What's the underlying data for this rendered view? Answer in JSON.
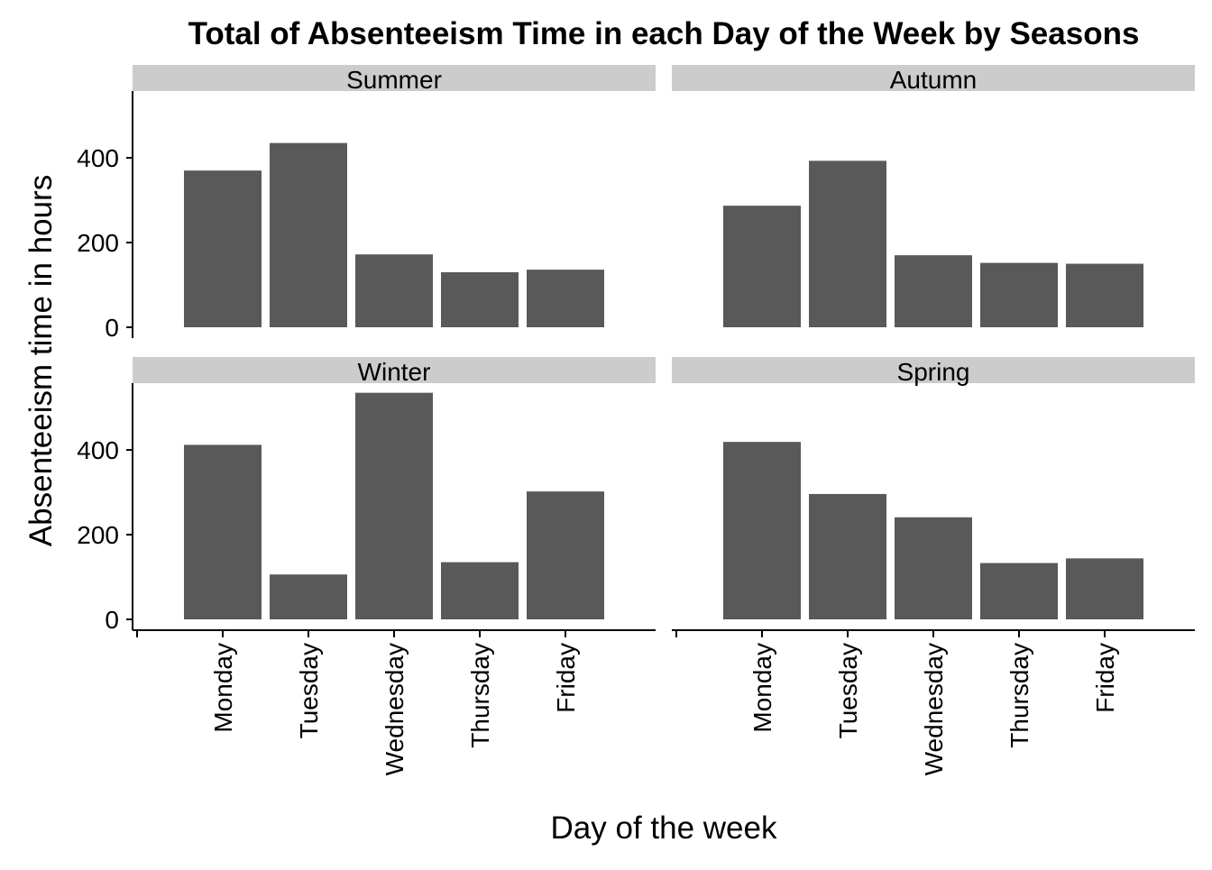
{
  "chart_data": {
    "type": "bar",
    "title": "Total of Absenteeism Time in each Day of the Week by Seasons",
    "xlabel": "Day of the week",
    "ylabel": "Absenteeism time in hours",
    "categories": [
      "Monday",
      "Tuesday",
      "Wednesday",
      "Thursday",
      "Friday"
    ],
    "yticks": [
      "0",
      "200",
      "400"
    ],
    "ylim": [
      0,
      560
    ],
    "bar_color": "#595959",
    "strip_color": "#cccccc",
    "grid": false,
    "legend": "none",
    "facets": [
      {
        "name": "Summer",
        "values": [
          370,
          435,
          172,
          130,
          136
        ]
      },
      {
        "name": "Autumn",
        "values": [
          287,
          393,
          170,
          152,
          150
        ]
      },
      {
        "name": "Winter",
        "values": [
          412,
          106,
          535,
          135,
          302
        ]
      },
      {
        "name": "Spring",
        "values": [
          419,
          296,
          241,
          133,
          144
        ]
      }
    ]
  }
}
